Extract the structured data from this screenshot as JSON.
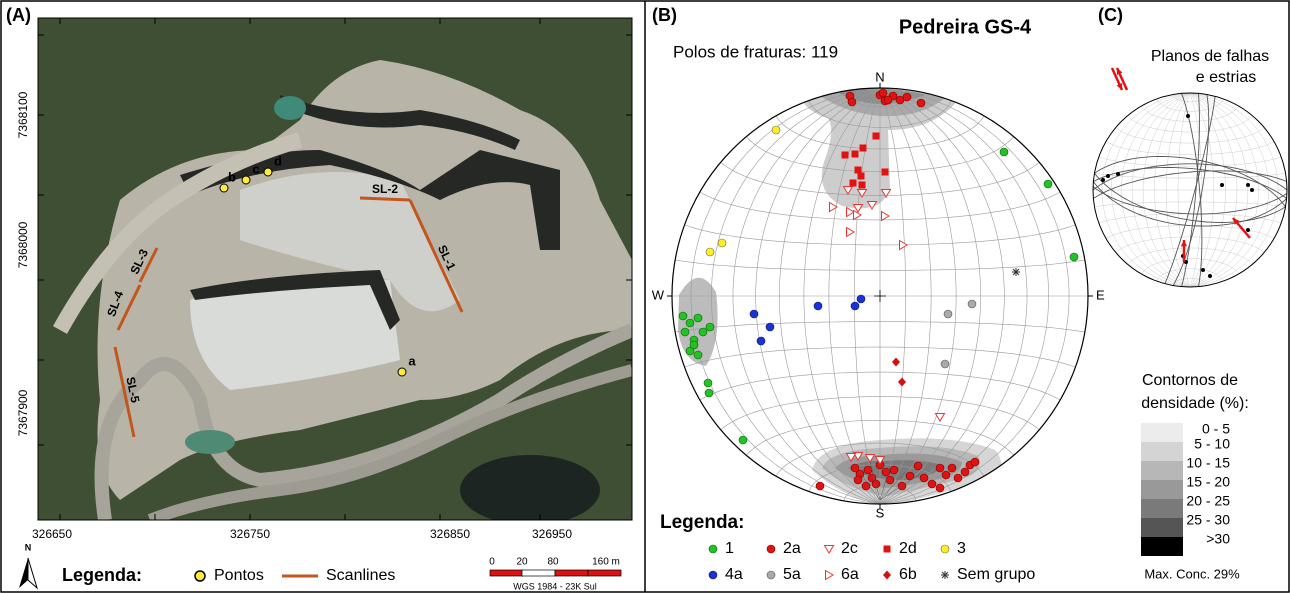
{
  "panel_a": {
    "label": "(A)",
    "y_ticks": [
      "7368100",
      "7368000",
      "7367900"
    ],
    "x_ticks": [
      "326650",
      "326750",
      "326850",
      "326950"
    ],
    "sample_points": [
      "a",
      "b",
      "c",
      "d"
    ],
    "scanlines": [
      "SL-1",
      "SL-2",
      "SL-3",
      "SL-4",
      "SL-5"
    ],
    "north": "N",
    "legend": {
      "title": "Legenda:",
      "items": [
        "Pontos",
        "Scanlines"
      ]
    },
    "scale_bar": {
      "ticks": [
        "0",
        "20",
        "80",
        "160 m"
      ],
      "datum": "WGS 1984 - 23K Sul"
    }
  },
  "panel_b": {
    "label": "(B)",
    "title": "Pedreira GS-4",
    "subtitle": "Polos de fraturas: 119",
    "directions": [
      "N",
      "E",
      "S",
      "W"
    ],
    "legend": {
      "title": "Legenda:",
      "items": [
        "1",
        "2a",
        "2c",
        "2d",
        "3",
        "4a",
        "5a",
        "6a",
        "6b",
        "Sem grupo"
      ]
    }
  },
  "panel_c": {
    "label": "(C)",
    "title": [
      "Planos de falhas",
      "e estrias"
    ],
    "density_legend": {
      "title": [
        "Contornos de",
        "densidade (%):"
      ],
      "classes": [
        "0 - 5",
        "5 - 10",
        "10 - 15",
        "15 - 20",
        "20 - 25",
        "25 - 30",
        ">30"
      ],
      "note": "Max. Conc. 29%"
    }
  }
}
